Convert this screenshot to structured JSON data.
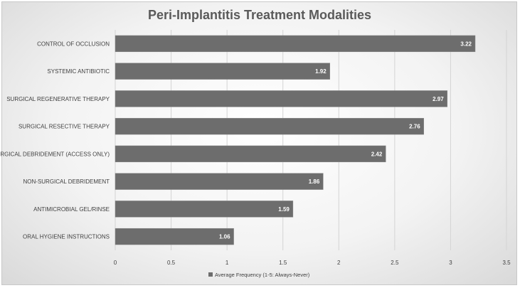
{
  "chart_data": {
    "type": "bar",
    "orientation": "horizontal",
    "title": "Peri-Implantitis Treatment Modalities",
    "categories": [
      "CONTROL OF OCCLUSION",
      "SYSTEMIC ANTIBIOTIC",
      "SURGICAL REGENERATIVE THERAPY",
      "SURGICAL RESECTIVE THERAPY",
      "SURGICAL DEBRIDEMENT (ACCESS ONLY)",
      "NON-SURGICAL DEBRIDEMENT",
      "ANTIMICROBIAL GEL/RINSE",
      "ORAL HYGIENE INSTRUCTIONS"
    ],
    "series": [
      {
        "name": "Average Frequency (1-5: Always-Never)",
        "values": [
          3.22,
          1.92,
          2.97,
          2.76,
          2.42,
          1.86,
          1.59,
          1.06
        ],
        "value_labels": [
          "3.22",
          "1.92",
          "2.97",
          "2.76",
          "2.42",
          "1.86",
          "1.59",
          "1.06"
        ]
      }
    ],
    "xlim": [
      0,
      3.5
    ],
    "xticks": [
      0,
      0.5,
      1,
      1.5,
      2,
      2.5,
      3,
      3.5
    ],
    "xtick_labels": [
      "0",
      "0.5",
      "1",
      "1.5",
      "2",
      "2.5",
      "3",
      "3.5"
    ],
    "grid": true,
    "legend_position": "bottom",
    "colors": {
      "bar": "#6d6d6d",
      "grid": "#d4d4d4"
    }
  }
}
